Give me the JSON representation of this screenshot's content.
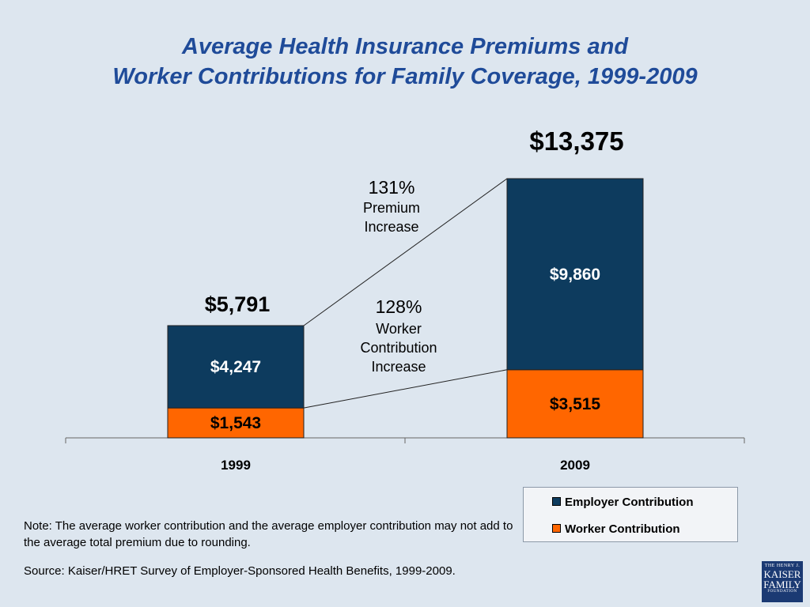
{
  "title_line1": "Average Health Insurance Premiums and",
  "title_line2": "Worker Contributions for Family Coverage, 1999-2009",
  "chart_data": {
    "type": "bar",
    "stacked": true,
    "categories": [
      "1999",
      "2009"
    ],
    "series": [
      {
        "name": "Worker Contribution",
        "values": [
          1543,
          3515
        ],
        "labels": [
          "$1,543",
          "$3,515"
        ],
        "color": "#ff6600"
      },
      {
        "name": "Employer Contribution",
        "values": [
          4247,
          9860
        ],
        "labels": [
          "$4,247",
          "$9,860"
        ],
        "color": "#0d3b5e"
      }
    ],
    "totals": [
      5791,
      13375
    ],
    "total_labels": [
      "$5,791",
      "$13,375"
    ],
    "annotations": {
      "premium": {
        "pct": "131%",
        "line1": "Premium",
        "line2": "Increase"
      },
      "worker": {
        "pct": "128%",
        "line1": "Worker",
        "line2": "Contribution",
        "line3": "Increase"
      }
    },
    "ylim": [
      0,
      13375
    ],
    "grid": false,
    "legend_position": "bottom-right"
  },
  "legend": {
    "items": [
      {
        "label": "Employer Contribution",
        "color": "#0d3b5e"
      },
      {
        "label": "Worker Contribution",
        "color": "#ff6600"
      }
    ]
  },
  "note": "Note: The average worker contribution and the average employer contribution may not add to the average total premium due to rounding.",
  "source": "Source:  Kaiser/HRET Survey of Employer-Sponsored Health Benefits, 1999-2009.",
  "logo": {
    "line1": "THE HENRY J.",
    "line2": "KAISER",
    "line3": "FAMILY",
    "line4": "FOUNDATION"
  }
}
